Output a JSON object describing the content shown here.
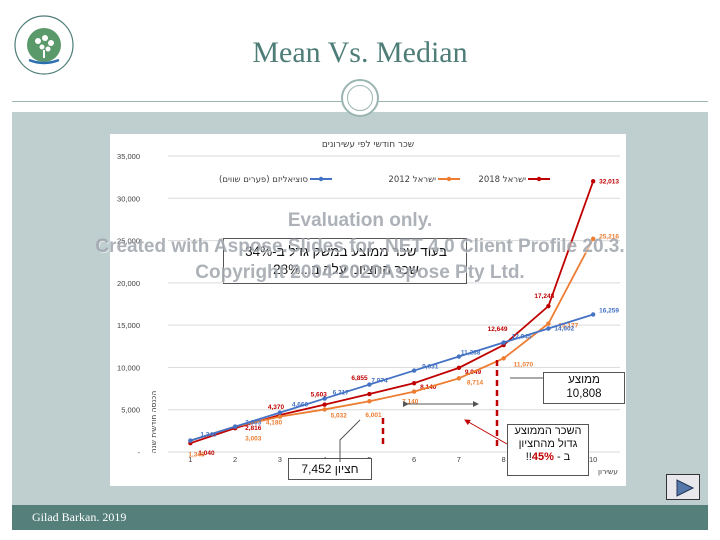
{
  "slide": {
    "title": "Mean Vs. Median",
    "footer": "Gilad Barkan. 2019",
    "logo_text": "המרכז האקדמי רופין · Ruppin Academic Center"
  },
  "callout": {
    "text": "בעוד שכר ממוצע במשק גדל ב-34%\nשכר החציוני עלה ב...28%"
  },
  "notes": {
    "average": "ממוצע\n10,808",
    "median": "חציון 7,452",
    "gap_line1": "השכר הממוצע\nגדול מהחציון",
    "gap_prefix": "ב - ",
    "gap_pct": "45%",
    "gap_suffix": "!!"
  },
  "watermark": {
    "line1": "Evaluation only.",
    "line2": "Created with Aspose.Slides for .NET 4.0 Client Profile 20.3.",
    "line3": "Copyright 2004-2020Aspose Pty Ltd."
  },
  "colors": {
    "israel_2018": "#c00000",
    "israel_2012": "#ed7d31",
    "socialism": "#4472c4",
    "title": "#4e7d78",
    "band": "#bfcfd0",
    "footer": "#557f7b"
  },
  "chart_data": {
    "type": "line",
    "title": "שכר חודשי לפי עשירונים",
    "xlabel": "עשירון",
    "ylabel": "הכנסה חודשית שנה",
    "legend_position": "top",
    "x": [
      1,
      2,
      3,
      4,
      5,
      6,
      7,
      8,
      9,
      10
    ],
    "ylim": [
      0,
      35000
    ],
    "yticks": [
      0,
      5000,
      10000,
      15000,
      20000,
      25000,
      30000,
      35000
    ],
    "ytick_labels": [
      "-",
      "5,000",
      "10,000",
      "15,000",
      "20,000",
      "25,000",
      "30,000",
      "35,000"
    ],
    "grid": true,
    "series": [
      {
        "name": "ישראל 2018",
        "color": "#c00000",
        "values": [
          1040,
          2816,
          4370,
          5603,
          6855,
          8140,
          9949,
          12649,
          17248,
          32013
        ],
        "labels": [
          "1,040",
          "2,816",
          "4,370",
          "5,603",
          "6,855",
          "8,140",
          "9,949",
          "12,649",
          "17,248",
          "32,013"
        ]
      },
      {
        "name": "ישראל 2012",
        "color": "#ed7d31",
        "values": [
          1346,
          3003,
          4180,
          5032,
          6001,
          7140,
          8714,
          11070,
          15177,
          25216
        ],
        "labels": [
          "1,346",
          "3,003",
          "4,180",
          "5,032",
          "6,001",
          "7,140",
          "8,714",
          "11,070",
          "15,177",
          "25,216"
        ]
      },
      {
        "name": "סוציאליזם (פערים שווים)",
        "color": "#4472c4",
        "values": [
          1346,
          3003,
          4660,
          6317,
          7974,
          9631,
          11288,
          12945,
          14602,
          16259
        ],
        "labels": [
          "1,346",
          "3,003",
          "4,660",
          "6,317",
          "7,974",
          "9,631",
          "11,288",
          "12,945",
          "14,602",
          "16,259"
        ]
      }
    ]
  }
}
